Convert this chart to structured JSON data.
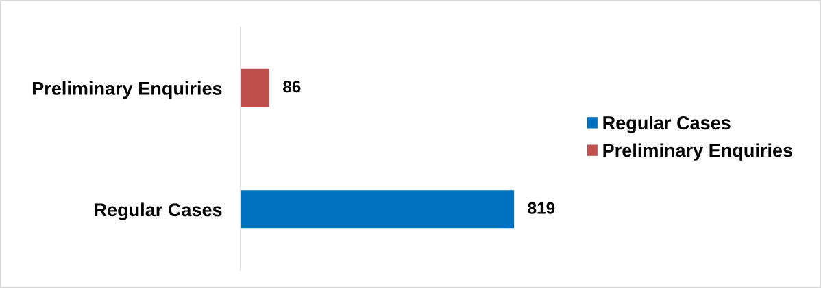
{
  "chart_data": {
    "type": "bar",
    "orientation": "horizontal",
    "stacked": true,
    "categories": [
      "Preliminary Enquiries",
      "Regular Cases"
    ],
    "series": [
      {
        "name": "Regular Cases",
        "color": "#0070c0",
        "values": [
          null,
          819
        ]
      },
      {
        "name": "Preliminary Enquiries",
        "color": "#c0504d",
        "values": [
          86,
          null
        ]
      }
    ],
    "data_labels": true,
    "legend": "right",
    "grid": false
  }
}
